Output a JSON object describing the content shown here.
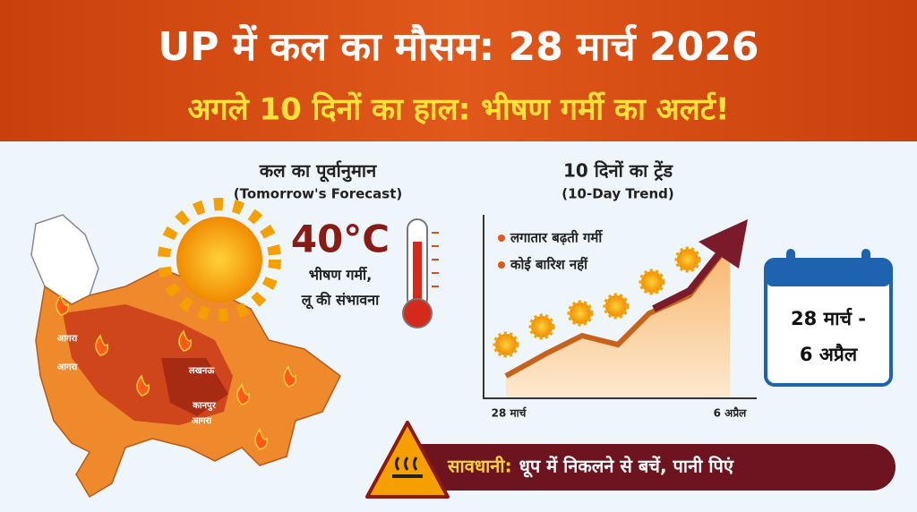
{
  "header": {
    "title": "UP में कल का मौसम: 28 मार्च 2026",
    "subtitle": "अगले 10 दिनों का हाल: भीषण गर्मी का अलर्ट!"
  },
  "map": {
    "cities": [
      "आगरा",
      "आगरा",
      "लखनऊ",
      "कानपुर",
      "आगरा"
    ]
  },
  "forecast": {
    "heading": "कल का पूर्वानुमान",
    "heading_en": "(Tomorrow's Forecast)",
    "temperature": "40°C",
    "description": [
      "भीषण गर्मी,",
      "लू की संभावना"
    ]
  },
  "trend": {
    "heading": "10 दिनों का ट्रेंड",
    "heading_en": "(10-Day Trend)",
    "points": [
      "लगातार बढ़ती गर्मी",
      "कोई बारिश नहीं"
    ],
    "start_label": "28 मार्च",
    "end_label": "6 अप्रैल"
  },
  "calendar": {
    "lines": [
      "28 मार्च -",
      "6 अप्रैल"
    ]
  },
  "warning": {
    "label": "सावधानी:",
    "text": "धूप में निकलने से बचें, पानी पिएं"
  }
}
